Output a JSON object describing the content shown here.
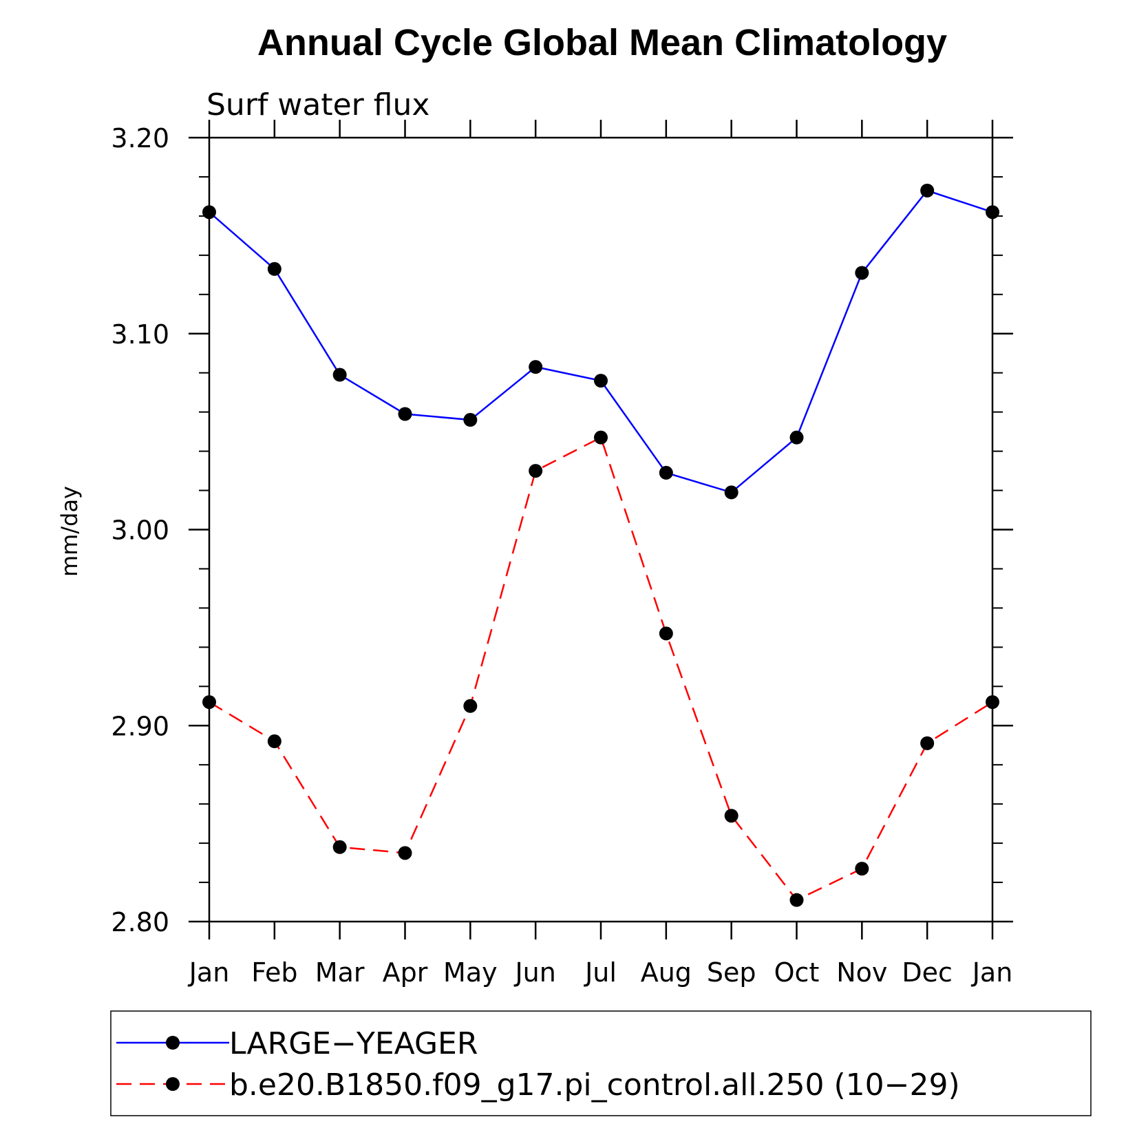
{
  "chart_data": {
    "type": "line",
    "title": "Annual Cycle Global Mean Climatology",
    "subtitle": "Surf water flux",
    "xlabel": "",
    "ylabel": "mm/day",
    "categories": [
      "Jan",
      "Feb",
      "Mar",
      "Apr",
      "May",
      "Jun",
      "Jul",
      "Aug",
      "Sep",
      "Oct",
      "Nov",
      "Dec",
      "Jan"
    ],
    "ylim": [
      2.8,
      3.2
    ],
    "yticks": [
      "2.80",
      "2.90",
      "3.00",
      "3.10",
      "3.20"
    ],
    "legend_position": "bottom",
    "series": [
      {
        "name": "LARGE−YEAGER",
        "color": "#0000ff",
        "dash": "solid",
        "values": [
          3.162,
          3.133,
          3.079,
          3.059,
          3.056,
          3.083,
          3.076,
          3.029,
          3.019,
          3.047,
          3.131,
          3.173,
          3.162
        ]
      },
      {
        "name": "b.e20.B1850.f09_g17.pi_control.all.250 (10−29)",
        "color": "#ff0000",
        "dash": "dashed",
        "values": [
          2.912,
          2.892,
          2.838,
          2.835,
          2.91,
          3.03,
          3.047,
          2.947,
          2.854,
          2.811,
          2.827,
          2.891,
          2.912
        ]
      }
    ]
  }
}
